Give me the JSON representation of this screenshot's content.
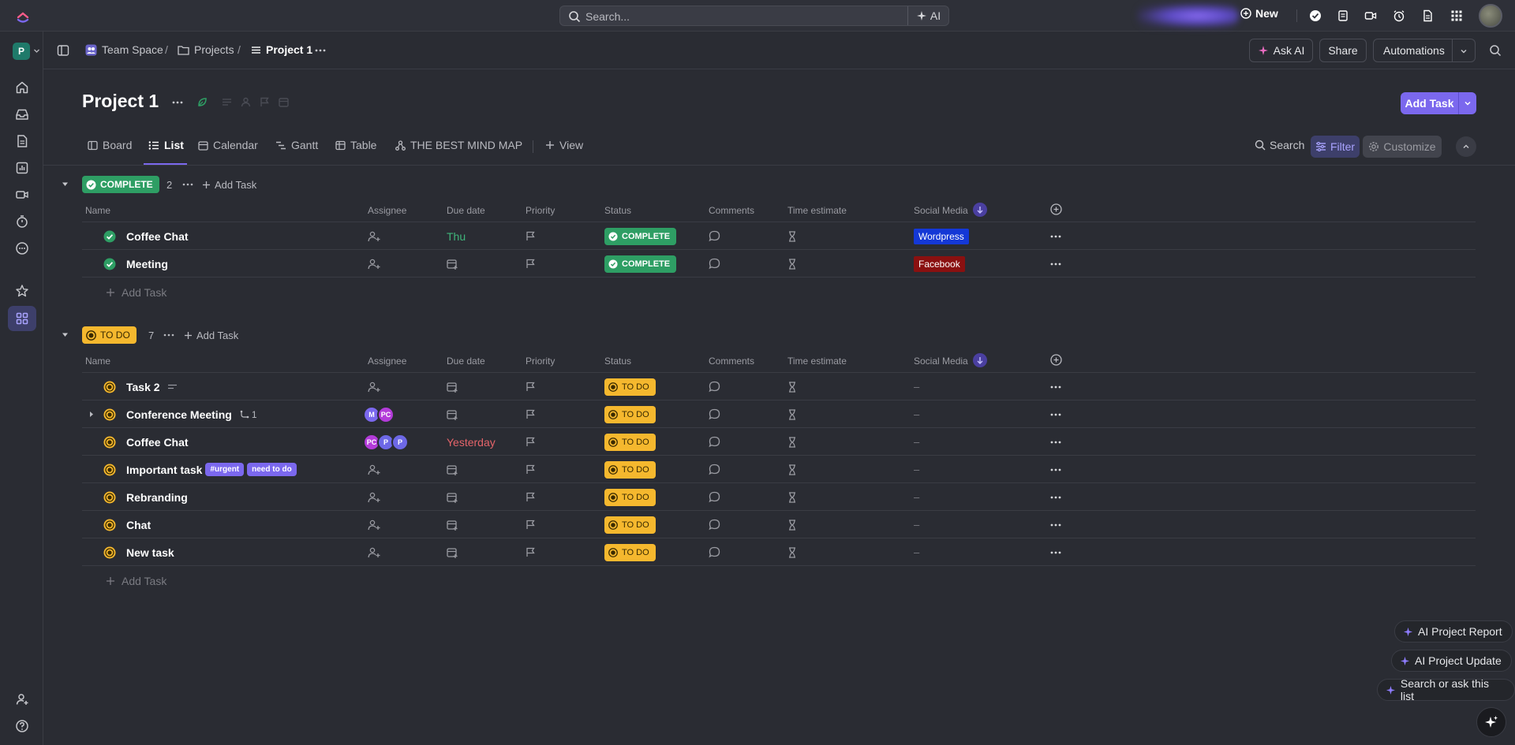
{
  "topbar": {
    "search_placeholder": "Search...",
    "ai_label": "AI",
    "new_label": "New"
  },
  "workspace": {
    "initial": "P"
  },
  "breadcrumb": {
    "space": "Team Space",
    "folder": "Projects",
    "list": "Project 1",
    "sep": "/"
  },
  "header_actions": {
    "ask_ai": "Ask AI",
    "share": "Share",
    "automations": "Automations"
  },
  "page": {
    "title": "Project 1",
    "add_task": "Add Task"
  },
  "tabs": [
    {
      "label": "Board",
      "icon": "board-icon"
    },
    {
      "label": "List",
      "icon": "list-icon"
    },
    {
      "label": "Calendar",
      "icon": "calendar-icon"
    },
    {
      "label": "Gantt",
      "icon": "gantt-icon"
    },
    {
      "label": "Table",
      "icon": "table-icon"
    },
    {
      "label": "THE BEST MIND MAP",
      "icon": "mindmap-icon"
    },
    {
      "label": "View",
      "icon": "plus-icon"
    }
  ],
  "tools": {
    "search": "Search",
    "filter": "Filter",
    "customize": "Customize"
  },
  "columns": {
    "name": "Name",
    "assignee": "Assignee",
    "due": "Due date",
    "priority": "Priority",
    "status": "Status",
    "comments": "Comments",
    "time": "Time estimate",
    "social": "Social Media"
  },
  "groups": {
    "complete": {
      "label": "COMPLETE",
      "count": "2",
      "add": "Add Task",
      "tasks": [
        {
          "name": "Coffee Chat",
          "due": "Thu",
          "status": "COMPLETE",
          "social": "Wordpress"
        },
        {
          "name": "Meeting",
          "due": "",
          "status": "COMPLETE",
          "social": "Facebook"
        }
      ],
      "add_row": "Add Task"
    },
    "todo": {
      "label": "TO DO",
      "count": "7",
      "add": "Add Task",
      "tasks": [
        {
          "name": "Task 2",
          "due": "",
          "status": "TO DO",
          "social": "–"
        },
        {
          "name": "Conference Meeting",
          "subtasks": "1",
          "assignees": [
            "M",
            "PC"
          ],
          "due": "",
          "status": "TO DO",
          "social": "–"
        },
        {
          "name": "Coffee Chat",
          "assignees": [
            "PC",
            "P",
            "P"
          ],
          "due": "Yesterday",
          "status": "TO DO",
          "social": "–"
        },
        {
          "name": "Important task",
          "tags": [
            "#urgent",
            "need to do"
          ],
          "due": "",
          "status": "TO DO",
          "social": "–"
        },
        {
          "name": "Rebranding",
          "due": "",
          "status": "TO DO",
          "social": "–"
        },
        {
          "name": "Chat",
          "due": "",
          "status": "TO DO",
          "social": "–"
        },
        {
          "name": "New task",
          "due": "",
          "status": "TO DO",
          "social": "–"
        }
      ],
      "add_row": "Add Task"
    }
  },
  "ai_actions": {
    "report": "AI Project Report",
    "update": "AI Project Update",
    "ask": "Search or ask this list"
  },
  "colors": {
    "accent": "#7b68ee",
    "complete": "#2e9e64",
    "todo": "#f5b82e",
    "wordpress": "#1438d6",
    "facebook": "#8a1010",
    "due_thu": "#3fb57a",
    "due_overdue": "#e5646a"
  }
}
